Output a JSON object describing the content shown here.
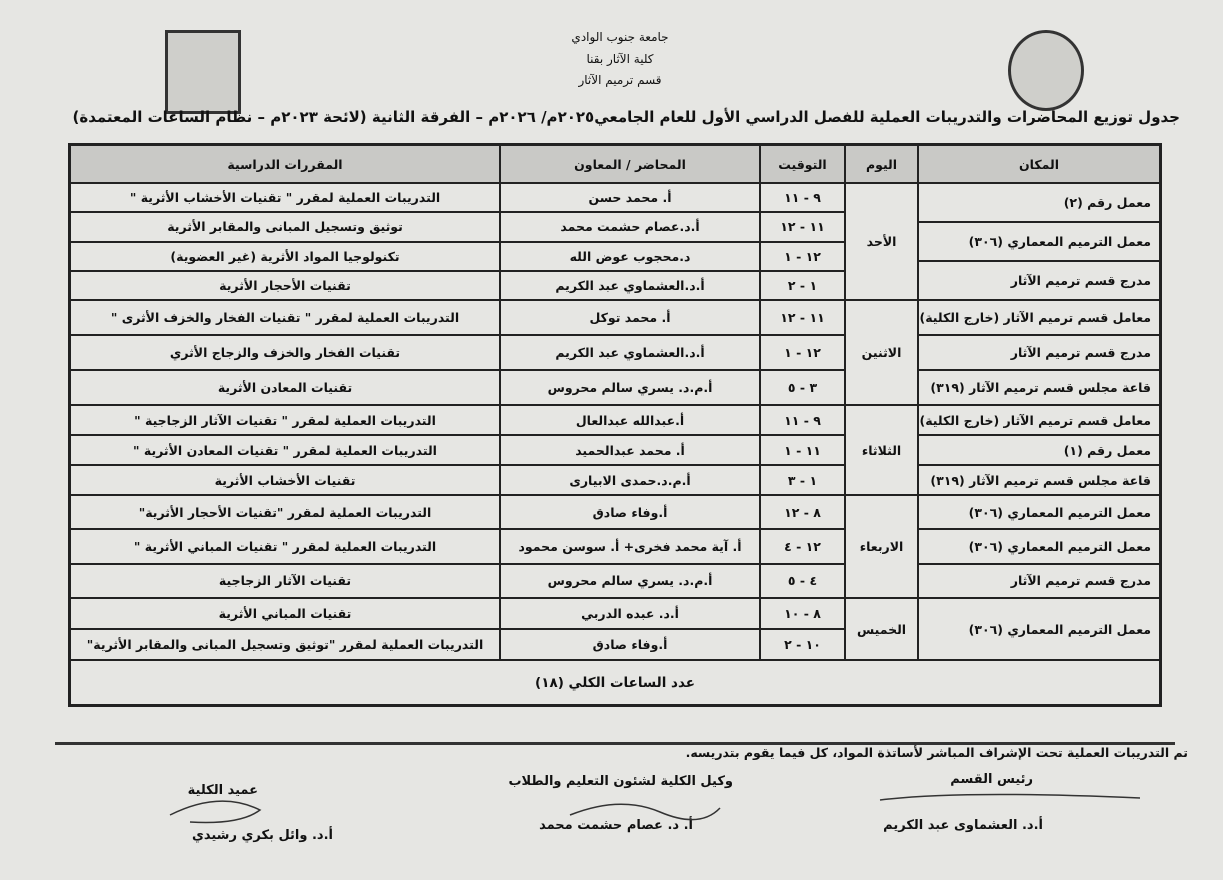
{
  "header": {
    "lines": [
      "جامعة جنوب الوادي",
      "كلية الآثار بقنا",
      "قسم ترميم الآثار"
    ],
    "title": "جدول توزيع المحاضرات والتدريبات العملية للفصل الدراسي الأول للعام الجامعي٢٠٢٥م/ ٢٠٢٦م – الفرقة الثانية (لائحة ٢٠٢٣م – نظام الساعات المعتمدة)"
  },
  "table": {
    "columns": [
      "المكان",
      "اليوم",
      "التوقيت",
      "المحاضر / المعاون",
      "المقررات الدراسية"
    ],
    "days": [
      {
        "day": "الأحد",
        "places": [
          "معمل رقم (٢)",
          "معمل الترميم المعماري (٣٠٦)",
          "مدرج قسم  ترميم الآثار"
        ],
        "rows": [
          [
            "٩ - ١١",
            "أ. محمد حسن",
            "التدريبات العملية لمقرر \" تقنيات الأخشاب الأثرية \""
          ],
          [
            "١١ - ١٢",
            "أ.د.عصام حشمت محمد",
            "توثيق وتسجيل المبانى والمقابر الأثرية"
          ],
          [
            "١٢ - ١",
            "د.محجوب عوض الله",
            "تكنولوجيا المواد الأثرية (غير العضوية)"
          ],
          [
            "١ - ٢",
            "أ.د.العشماوي عبد الكريم",
            "تقنيات الأحجار الأثرية"
          ]
        ]
      },
      {
        "day": "الاثنين",
        "places": [
          "معامل قسم ترميم الآثار (خارج الكلية)",
          "مدرج قسم ترميم الآثار",
          "قاعة مجلس قسم ترميم الآثار (٣١٩)"
        ],
        "rows": [
          [
            "١١ - ١٢",
            "أ. محمد توكل",
            "التدريبات العملية لمقرر \" تقنيات الفخار والخزف الأثرى \""
          ],
          [
            "١٢ - ١",
            "أ.د.العشماوي عبد الكريم",
            "تقنيات الفخار والخزف والزجاج الأثري"
          ],
          [
            "٣ - ٥",
            "أ.م.د. يسري سالم محروس",
            "تقنيات المعادن الأثرية"
          ]
        ]
      },
      {
        "day": "الثلاثاء",
        "places": [
          "معامل قسم ترميم الآثار (خارج الكلية)",
          "معمل رقم (١)",
          "قاعة مجلس قسم ترميم الآثار (٣١٩)"
        ],
        "rows": [
          [
            "٩ - ١١",
            "أ.عبدالله عبدالعال",
            "التدريبات العملية لمقرر \" تقنيات الآثار الزجاجية \""
          ],
          [
            "١١ - ١",
            "أ. محمد عبدالحميد",
            "التدريبات العملية لمقرر \" تقنيات المعادن الأثرية \""
          ],
          [
            "١ - ٣",
            "أ.م.د.حمدى الابيارى",
            "تقنيات الأخشاب الأثرية"
          ]
        ]
      },
      {
        "day": "الاربعاء",
        "places": [
          "معمل الترميم المعماري (٣٠٦)",
          "معمل الترميم المعماري (٣٠٦)",
          "مدرج قسم  ترميم الآثار"
        ],
        "rows": [
          [
            "٨ - ١٢",
            "أ.وفاء صادق",
            "التدريبات العملية لمقرر \"تقنيات الأحجار الأثرية\""
          ],
          [
            "١٢ - ٤",
            "أ. آية محمد فخرى+ أ. سوسن محمود",
            "التدريبات العملية لمقرر \" تقنيات المباني الأثرية \""
          ],
          [
            "٤ - ٥",
            "أ.م.د. يسري سالم محروس",
            "تقنيات الآثار الزجاجية"
          ]
        ]
      },
      {
        "day": "الخميس",
        "places": [
          "معمل الترميم المعماري (٣٠٦)"
        ],
        "rows": [
          [
            "٨ - ١٠",
            "أ.د. عبده الدربي",
            "تقنيات المباني الأثرية"
          ],
          [
            "١٠ - ٢",
            "أ.وفاء صادق",
            "التدريبات العملية لمقرر \"توثيق وتسجيل المبانى والمقابر الأثرية\""
          ]
        ]
      }
    ],
    "total": "عدد الساعات الكلي (١٨)"
  },
  "footer": {
    "note": "تم التدريبات العملية تحت الإشراف المباشر لأساتذة المواد، كل فيما يقوم بتدريسه.",
    "signatures": [
      {
        "role": "رئيس القسم",
        "name": "أ.د. العشماوى عبد الكريم"
      },
      {
        "role": "وكيل الكلية لشئون التعليم والطلاب",
        "name": "أ. د. عصام حشمت محمد"
      },
      {
        "role": "عميد الكلية",
        "name": "أ.د. وائل بكري رشيدي"
      }
    ]
  }
}
